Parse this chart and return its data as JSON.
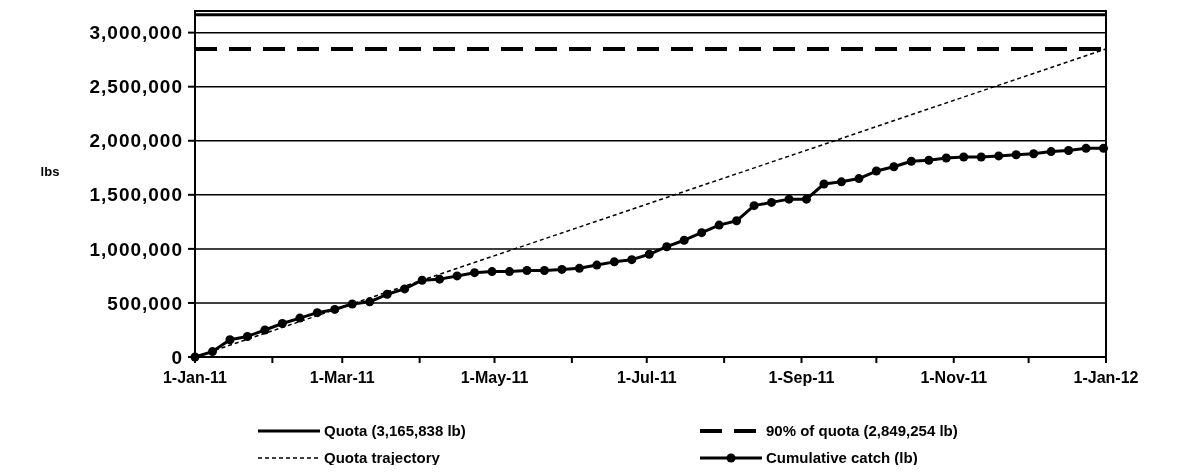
{
  "chart_data": {
    "type": "line",
    "ylabel": "lbs",
    "ylim": [
      0,
      3200000
    ],
    "yticks": [
      {
        "value": 0,
        "label": "0"
      },
      {
        "value": 500000,
        "label": "500,000"
      },
      {
        "value": 1000000,
        "label": "1,000,000"
      },
      {
        "value": 1500000,
        "label": "1,500,000"
      },
      {
        "value": 2000000,
        "label": "2,000,000"
      },
      {
        "value": 2500000,
        "label": "2,500,000"
      },
      {
        "value": 3000000,
        "label": "3,000,000"
      }
    ],
    "xlim": [
      "2011-01-01",
      "2012-01-01"
    ],
    "xticks": [
      {
        "value": "2011-01-01",
        "label": "1-Jan-11"
      },
      {
        "value": "2011-02-01",
        "label": null
      },
      {
        "value": "2011-03-01",
        "label": "1-Mar-11"
      },
      {
        "value": "2011-04-01",
        "label": null
      },
      {
        "value": "2011-05-01",
        "label": "1-May-11"
      },
      {
        "value": "2011-06-01",
        "label": null
      },
      {
        "value": "2011-07-01",
        "label": "1-Jul-11"
      },
      {
        "value": "2011-08-01",
        "label": null
      },
      {
        "value": "2011-09-01",
        "label": "1-Sep-11"
      },
      {
        "value": "2011-10-01",
        "label": null
      },
      {
        "value": "2011-11-01",
        "label": "1-Nov-11"
      },
      {
        "value": "2011-12-01",
        "label": null
      },
      {
        "value": "2012-01-01",
        "label": "1-Jan-12"
      }
    ],
    "grid": "y",
    "legend": "bottom",
    "series": [
      {
        "name": "Quota (3,165,838 lb)",
        "color": "#000000",
        "line_style": "solid",
        "marker": "none",
        "x": [
          "2011-01-01",
          "2012-01-01"
        ],
        "values": [
          3165838,
          3165838
        ]
      },
      {
        "name": "90% of quota (2,849,254 lb)",
        "color": "#000000",
        "line_style": "dashed",
        "marker": "none",
        "x": [
          "2011-01-01",
          "2012-01-01"
        ],
        "values": [
          2849254,
          2849254
        ]
      },
      {
        "name": "Quota trajectory",
        "color": "#000000",
        "line_style": "dotted",
        "x": [
          "2011-01-01",
          "2012-01-01"
        ],
        "values": [
          0,
          2849254
        ]
      },
      {
        "name": "Cumulative catch (lb)",
        "color": "#000000",
        "line_style": "solid",
        "marker": "circle",
        "x": [
          "2011-01-01",
          "2011-01-08",
          "2011-01-15",
          "2011-01-22",
          "2011-01-29",
          "2011-02-05",
          "2011-02-12",
          "2011-02-19",
          "2011-02-26",
          "2011-03-05",
          "2011-03-12",
          "2011-03-19",
          "2011-03-26",
          "2011-04-02",
          "2011-04-09",
          "2011-04-16",
          "2011-04-23",
          "2011-04-30",
          "2011-05-07",
          "2011-05-14",
          "2011-05-21",
          "2011-05-28",
          "2011-06-04",
          "2011-06-11",
          "2011-06-18",
          "2011-06-25",
          "2011-07-02",
          "2011-07-09",
          "2011-07-16",
          "2011-07-23",
          "2011-07-30",
          "2011-08-06",
          "2011-08-13",
          "2011-08-20",
          "2011-08-27",
          "2011-09-03",
          "2011-09-10",
          "2011-09-17",
          "2011-09-24",
          "2011-10-01",
          "2011-10-08",
          "2011-10-15",
          "2011-10-22",
          "2011-10-29",
          "2011-11-05",
          "2011-11-12",
          "2011-11-19",
          "2011-11-26",
          "2011-12-03",
          "2011-12-10",
          "2011-12-17",
          "2011-12-24",
          "2011-12-31"
        ],
        "values": [
          0,
          50000,
          160000,
          190000,
          250000,
          310000,
          360000,
          410000,
          440000,
          490000,
          510000,
          580000,
          630000,
          710000,
          720000,
          750000,
          780000,
          790000,
          790000,
          800000,
          800000,
          810000,
          820000,
          850000,
          880000,
          900000,
          950000,
          1020000,
          1080000,
          1150000,
          1220000,
          1260000,
          1400000,
          1430000,
          1460000,
          1460000,
          1600000,
          1620000,
          1650000,
          1720000,
          1760000,
          1810000,
          1820000,
          1840000,
          1850000,
          1850000,
          1860000,
          1870000,
          1880000,
          1900000,
          1910000,
          1930000,
          1930000
        ]
      }
    ]
  }
}
